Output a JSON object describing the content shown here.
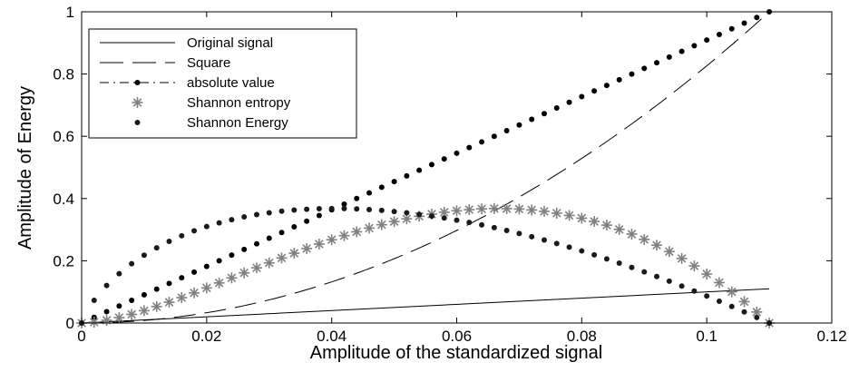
{
  "chart_data": {
    "type": "line",
    "title": "",
    "xlabel": "Amplitude of the standardized signal",
    "ylabel": "Amplitude of Energy",
    "xlim": [
      0,
      0.12
    ],
    "ylim": [
      0,
      1
    ],
    "xticks": [
      "0",
      "0.02",
      "0.04",
      "0.06",
      "0.08",
      "0.1",
      "0.12"
    ],
    "yticks": [
      "0",
      "0.2",
      "0.4",
      "0.6",
      "0.8",
      "1"
    ],
    "grid": false,
    "legend_position": "top-left",
    "x_max": 0.11,
    "series": [
      {
        "name": "Original signal",
        "style": "solid",
        "color": "#000000",
        "formula": "x"
      },
      {
        "name": "Square",
        "style": "dashed",
        "color": "#000000",
        "formula": "(x/0.11)^2"
      },
      {
        "name": "absolute value",
        "style": "dash-dot-marker",
        "color": "#000000",
        "formula": "x/0.11"
      },
      {
        "name": "Shannon entropy",
        "style": "asterisk",
        "color": "#808080",
        "formula": "-(x/0.11)^2 * ln((x/0.11)^2)"
      },
      {
        "name": "Shannon Energy",
        "style": "dot",
        "color": "#1a1a1a",
        "formula": "-(x/0.11) * ln(x/0.11)"
      }
    ]
  }
}
